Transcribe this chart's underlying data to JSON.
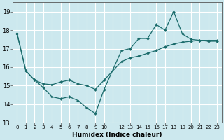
{
  "xlabel": "Humidex (Indice chaleur)",
  "bg_color": "#cce8ee",
  "grid_color": "#ffffff",
  "line_color": "#1a6b6b",
  "xlim": [
    -0.5,
    23.5
  ],
  "ylim": [
    13,
    19.5
  ],
  "yticks": [
    13,
    14,
    15,
    16,
    17,
    18,
    19
  ],
  "xtick_labels": [
    "0",
    "1",
    "2",
    "3",
    "4",
    "5",
    "6",
    "7",
    "8",
    "9",
    "10",
    "",
    "12",
    "13",
    "14",
    "15",
    "16",
    "17",
    "18",
    "19",
    "20",
    "21",
    "22",
    "23"
  ],
  "series1_x": [
    0,
    1,
    2,
    3,
    4,
    5,
    6,
    7,
    8,
    9,
    10,
    12,
    13,
    14,
    15,
    16,
    17,
    18,
    19,
    20,
    21,
    22,
    23
  ],
  "series1_y": [
    17.8,
    15.8,
    15.3,
    14.9,
    14.4,
    14.3,
    14.4,
    14.2,
    13.8,
    13.5,
    14.8,
    16.9,
    17.0,
    17.55,
    17.55,
    18.3,
    18.0,
    19.0,
    17.8,
    17.5,
    17.45,
    17.4,
    17.4
  ],
  "series2_x": [
    0,
    1,
    2,
    3,
    4,
    5,
    6,
    7,
    8,
    9,
    10,
    12,
    13,
    14,
    15,
    16,
    17,
    18,
    19,
    20,
    21,
    22,
    23
  ],
  "series2_y": [
    17.8,
    15.8,
    15.3,
    15.1,
    15.05,
    15.2,
    15.3,
    15.1,
    15.0,
    14.8,
    15.3,
    16.3,
    16.5,
    16.6,
    16.75,
    16.9,
    17.1,
    17.25,
    17.35,
    17.4,
    17.45,
    17.45,
    17.45
  ]
}
